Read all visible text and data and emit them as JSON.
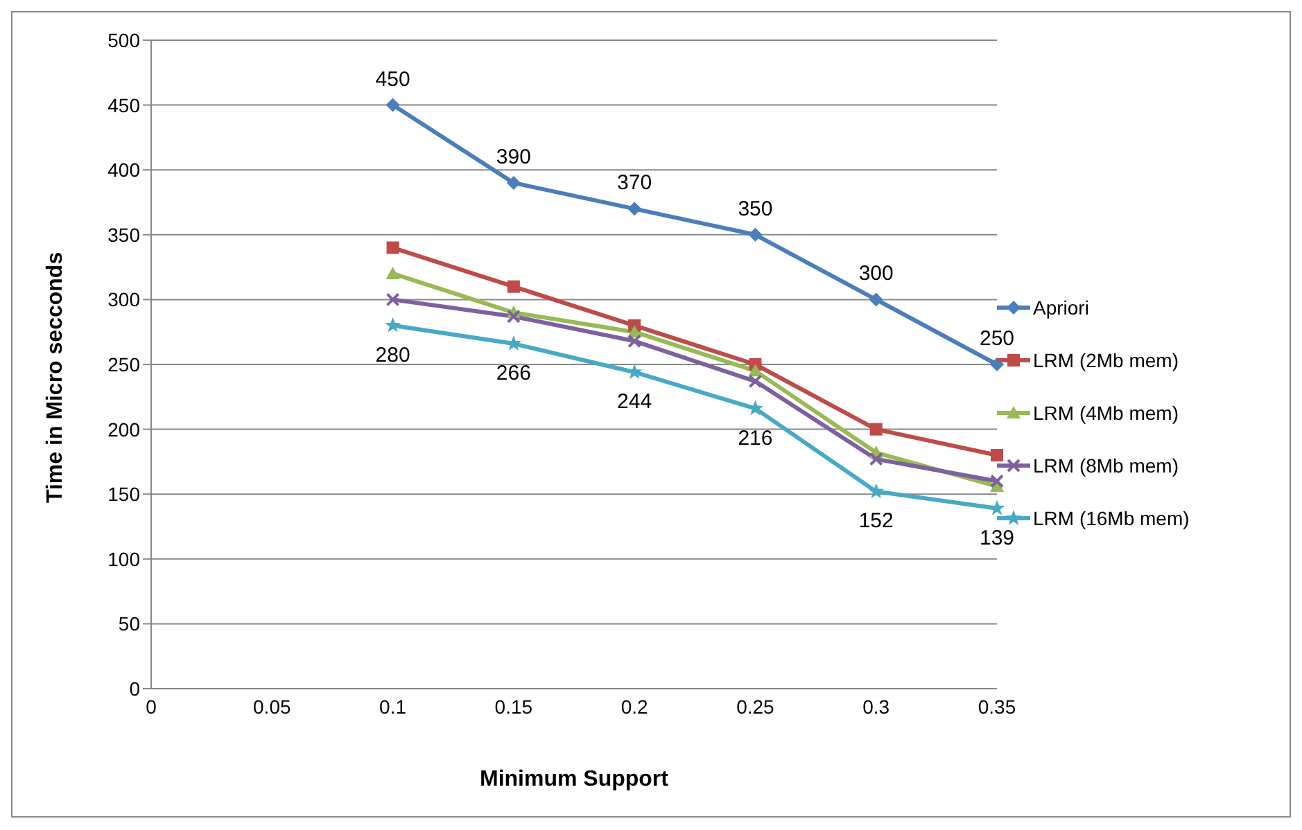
{
  "chart_data": {
    "type": "line",
    "xlabel": "Minimum Support",
    "ylabel": "Time in Micro secconds",
    "categories": [
      "0",
      "0.05",
      "0.1",
      "0.15",
      "0.2",
      "0.25",
      "0.3",
      "0.35"
    ],
    "ylim": [
      0,
      500
    ],
    "yticks": [
      0,
      50,
      100,
      150,
      200,
      250,
      300,
      350,
      400,
      450,
      500
    ],
    "grid": "y",
    "legend": "right",
    "line_style": "solid",
    "series": [
      {
        "name": "Apriori",
        "color": "#4a7ebb",
        "marker": "diamond",
        "values": [
          null,
          null,
          450,
          390,
          370,
          350,
          300,
          250
        ],
        "value_labels": [
          null,
          null,
          "450",
          "390",
          "370",
          "350",
          "300",
          "250"
        ]
      },
      {
        "name": "LRM (2Mb mem)",
        "color": "#be4b48",
        "marker": "square",
        "values": [
          null,
          null,
          340,
          310,
          280,
          250,
          200,
          180
        ]
      },
      {
        "name": "LRM (4Mb mem)",
        "color": "#98b954",
        "marker": "triangle",
        "values": [
          null,
          null,
          320,
          290,
          275,
          245,
          182,
          156
        ]
      },
      {
        "name": "LRM (8Mb mem)",
        "color": "#7d60a0",
        "marker": "cross",
        "values": [
          null,
          null,
          300,
          287,
          268,
          237,
          177,
          160
        ]
      },
      {
        "name": "LRM (16Mb mem)",
        "color": "#46aac5",
        "marker": "star",
        "values": [
          null,
          null,
          280,
          266,
          244,
          216,
          152,
          139
        ],
        "value_labels": [
          null,
          null,
          "280",
          "266",
          "244",
          "216",
          "152",
          "139"
        ]
      }
    ]
  }
}
